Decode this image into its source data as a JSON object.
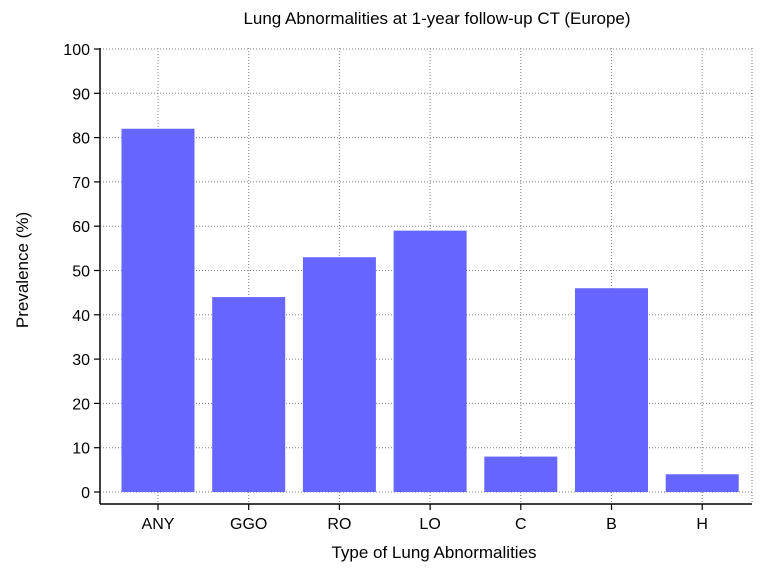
{
  "chart_data": {
    "type": "bar",
    "title": "Lung Abnormalities at 1-year follow-up CT (Europe)",
    "xlabel": "Type of Lung Abnormalities",
    "ylabel": "Prevalence (%)",
    "categories": [
      "ANY",
      "GGO",
      "RO",
      "LO",
      "C",
      "B",
      "H"
    ],
    "values": [
      82,
      44,
      53,
      59,
      8,
      46,
      4
    ],
    "ylim": [
      0,
      100
    ],
    "yticks": [
      0,
      10,
      20,
      30,
      40,
      50,
      60,
      70,
      80,
      90,
      100
    ],
    "grid": true,
    "colors": {
      "bar": "#6666ff",
      "grid": "#808080",
      "axis": "#000000"
    }
  }
}
